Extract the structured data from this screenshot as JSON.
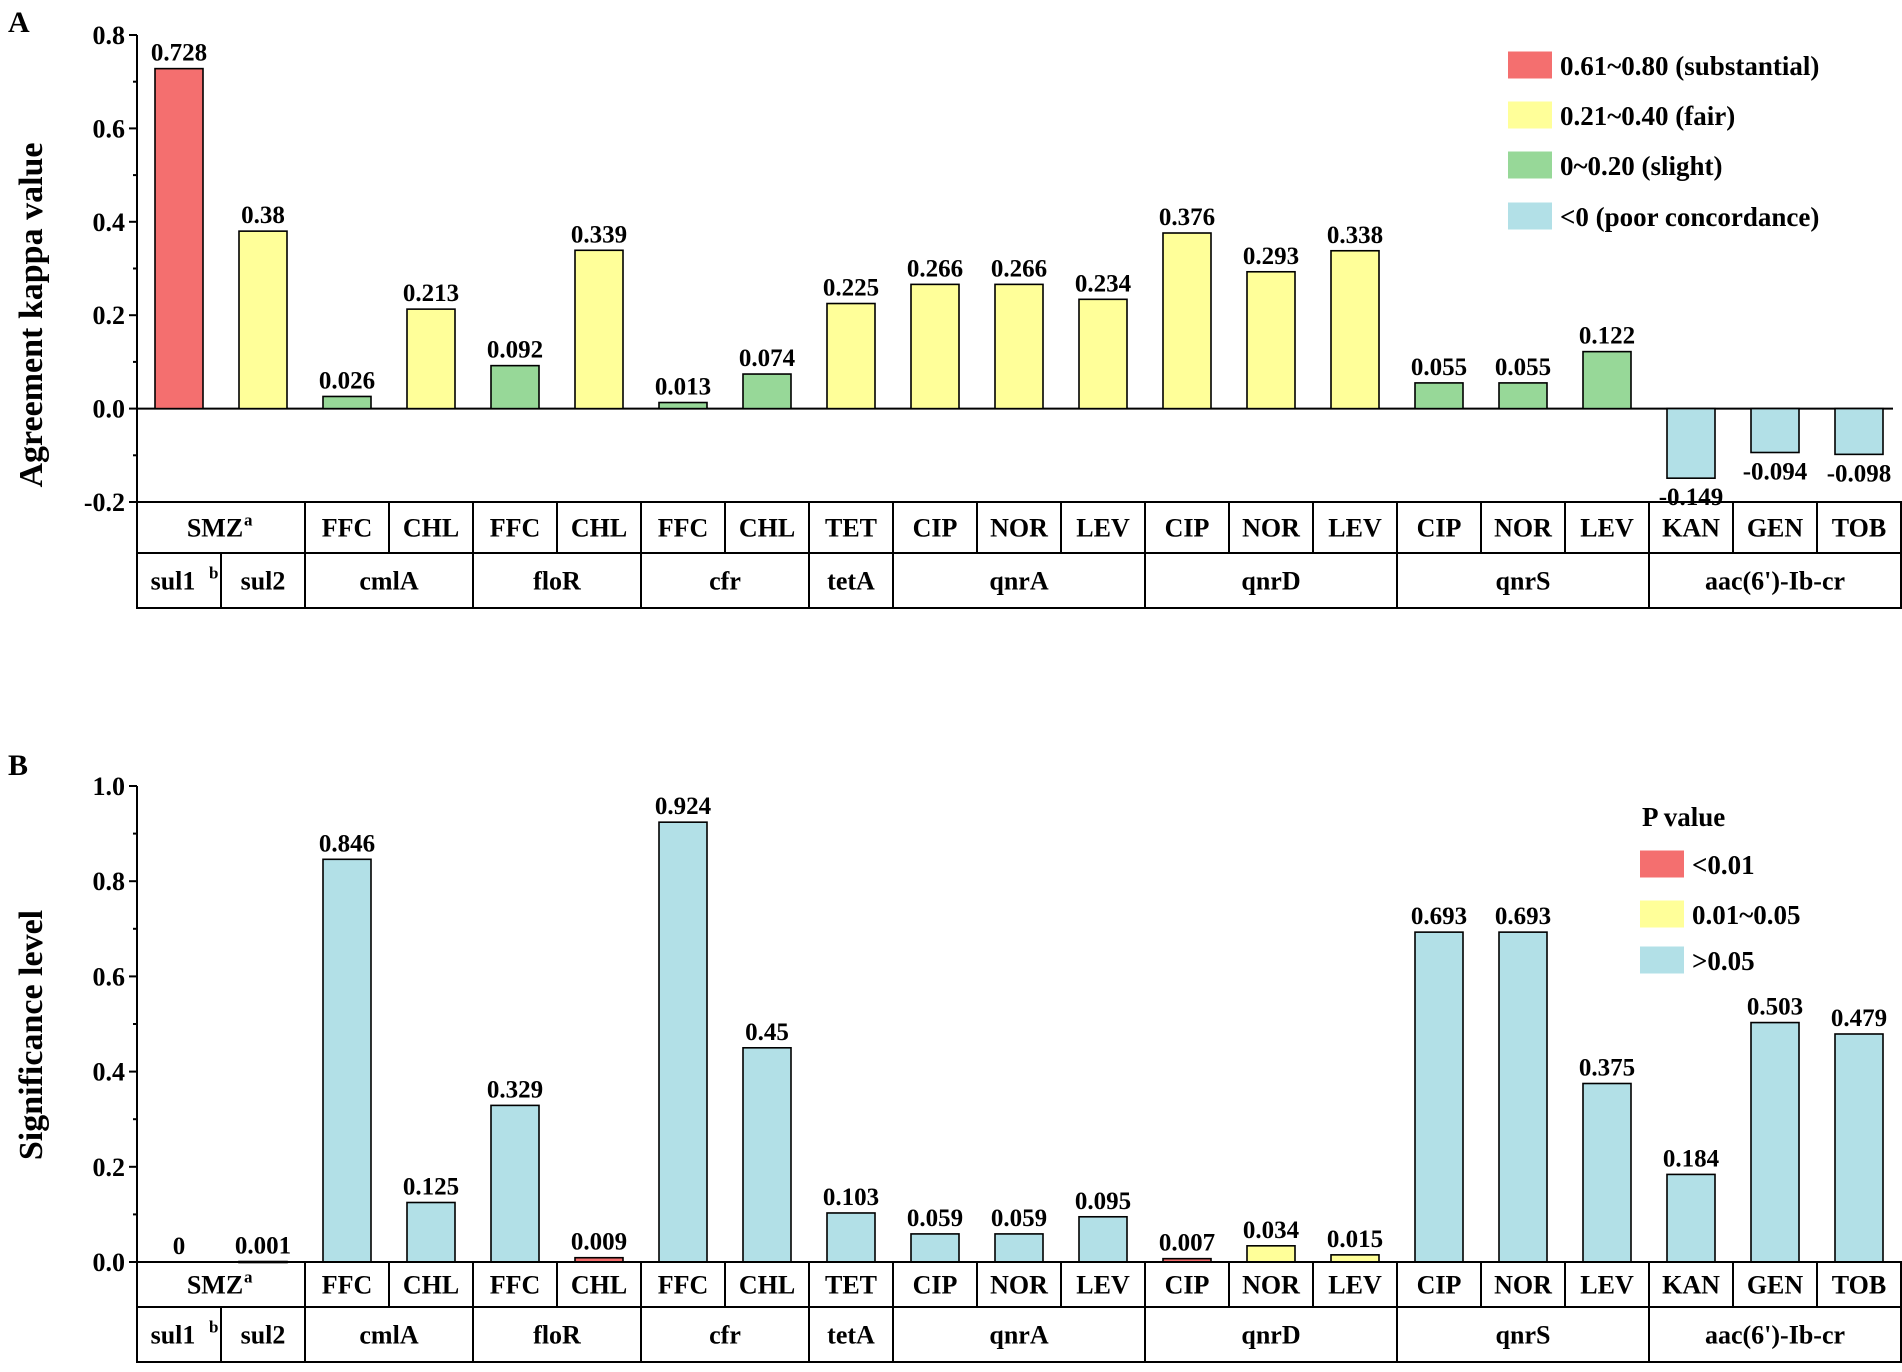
{
  "figure": {
    "colors": {
      "substantial": "#f46f6f",
      "fair": "#ffff99",
      "slight": "#97d898",
      "poor": "#b2e0e7",
      "p_lt_001": "#f46f6f",
      "p_001_005": "#ffff99",
      "p_gt_005": "#b2e0e7",
      "stroke": "#000000"
    }
  },
  "chart_data": [
    {
      "panel": "A",
      "type": "bar",
      "ylabel": "Agreement kappa value",
      "ylim": [
        -0.2,
        0.8
      ],
      "yticks": [
        "-0.2",
        "0.0",
        "0.2",
        "0.4",
        "0.6",
        "0.8"
      ],
      "ytick_values": [
        -0.2,
        0.0,
        0.2,
        0.4,
        0.6,
        0.8
      ],
      "legend": {
        "position": "top-right",
        "title": "",
        "entries": [
          {
            "label": "0.61~0.80 (substantial)",
            "color_key": "substantial"
          },
          {
            "label": "0.21~0.40 (fair)",
            "color_key": "fair"
          },
          {
            "label": "0~0.20 (slight)",
            "color_key": "slight"
          },
          {
            "label": "<0 (poor concordance)",
            "color_key": "poor"
          }
        ]
      },
      "bars": [
        {
          "antibiotic": "SMZ",
          "gene": "sul1",
          "value": 0.728,
          "label": "0.728",
          "color_key": "substantial"
        },
        {
          "antibiotic": "SMZ",
          "gene": "sul2",
          "value": 0.38,
          "label": "0.38",
          "color_key": "fair"
        },
        {
          "antibiotic": "FFC",
          "gene": "cmlA",
          "value": 0.026,
          "label": "0.026",
          "color_key": "slight"
        },
        {
          "antibiotic": "CHL",
          "gene": "cmlA",
          "value": 0.213,
          "label": "0.213",
          "color_key": "fair"
        },
        {
          "antibiotic": "FFC",
          "gene": "floR",
          "value": 0.092,
          "label": "0.092",
          "color_key": "slight"
        },
        {
          "antibiotic": "CHL",
          "gene": "floR",
          "value": 0.339,
          "label": "0.339",
          "color_key": "fair"
        },
        {
          "antibiotic": "FFC",
          "gene": "cfr",
          "value": 0.013,
          "label": "0.013",
          "color_key": "slight"
        },
        {
          "antibiotic": "CHL",
          "gene": "cfr",
          "value": 0.074,
          "label": "0.074",
          "color_key": "slight"
        },
        {
          "antibiotic": "TET",
          "gene": "tetA",
          "value": 0.225,
          "label": "0.225",
          "color_key": "fair"
        },
        {
          "antibiotic": "CIP",
          "gene": "qnrA",
          "value": 0.266,
          "label": "0.266",
          "color_key": "fair"
        },
        {
          "antibiotic": "NOR",
          "gene": "qnrA",
          "value": 0.266,
          "label": "0.266",
          "color_key": "fair"
        },
        {
          "antibiotic": "LEV",
          "gene": "qnrA",
          "value": 0.234,
          "label": "0.234",
          "color_key": "fair"
        },
        {
          "antibiotic": "CIP",
          "gene": "qnrD",
          "value": 0.376,
          "label": "0.376",
          "color_key": "fair"
        },
        {
          "antibiotic": "NOR",
          "gene": "qnrD",
          "value": 0.293,
          "label": "0.293",
          "color_key": "fair"
        },
        {
          "antibiotic": "LEV",
          "gene": "qnrD",
          "value": 0.338,
          "label": "0.338",
          "color_key": "fair"
        },
        {
          "antibiotic": "CIP",
          "gene": "qnrS",
          "value": 0.055,
          "label": "0.055",
          "color_key": "slight"
        },
        {
          "antibiotic": "NOR",
          "gene": "qnrS",
          "value": 0.055,
          "label": "0.055",
          "color_key": "slight"
        },
        {
          "antibiotic": "LEV",
          "gene": "qnrS",
          "value": 0.122,
          "label": "0.122",
          "color_key": "slight"
        },
        {
          "antibiotic": "KAN",
          "gene": "aac(6')-Ib-cr",
          "value": -0.149,
          "label": "-0.149",
          "color_key": "poor"
        },
        {
          "antibiotic": "GEN",
          "gene": "aac(6')-Ib-cr",
          "value": -0.094,
          "label": "-0.094",
          "color_key": "poor"
        },
        {
          "antibiotic": "TOB",
          "gene": "aac(6')-Ib-cr",
          "value": -0.098,
          "label": "-0.098",
          "color_key": "poor"
        }
      ],
      "table": {
        "antibiotic_cells": [
          {
            "text": "SMZ",
            "sup": "a",
            "span": 2
          },
          {
            "text": "FFC",
            "span": 1
          },
          {
            "text": "CHL",
            "span": 1
          },
          {
            "text": "FFC",
            "span": 1
          },
          {
            "text": "CHL",
            "span": 1
          },
          {
            "text": "FFC",
            "span": 1
          },
          {
            "text": "CHL",
            "span": 1
          },
          {
            "text": "TET",
            "span": 1
          },
          {
            "text": "CIP",
            "span": 1
          },
          {
            "text": "NOR",
            "span": 1
          },
          {
            "text": "LEV",
            "span": 1
          },
          {
            "text": "CIP",
            "span": 1
          },
          {
            "text": "NOR",
            "span": 1
          },
          {
            "text": "LEV",
            "span": 1
          },
          {
            "text": "CIP",
            "span": 1
          },
          {
            "text": "NOR",
            "span": 1
          },
          {
            "text": "LEV",
            "span": 1
          },
          {
            "text": "KAN",
            "span": 1
          },
          {
            "text": "GEN",
            "span": 1
          },
          {
            "text": "TOB",
            "span": 1
          }
        ],
        "gene_cells": [
          {
            "text": "sul1",
            "sup": "b",
            "span": 1
          },
          {
            "text": "sul2",
            "span": 1
          },
          {
            "text": "cmlA",
            "span": 2
          },
          {
            "text": "floR",
            "span": 2
          },
          {
            "text": "cfr",
            "span": 2
          },
          {
            "text": "tetA",
            "span": 1
          },
          {
            "text": "qnrA",
            "span": 3
          },
          {
            "text": "qnrD",
            "span": 3
          },
          {
            "text": "qnrS",
            "span": 3
          },
          {
            "text": "aac(6')-Ib-cr",
            "span": 3
          }
        ]
      }
    },
    {
      "panel": "B",
      "type": "bar",
      "ylabel": "Significance level",
      "ylim": [
        0.0,
        1.0
      ],
      "yticks": [
        "0.0",
        "0.2",
        "0.4",
        "0.6",
        "0.8",
        "1.0"
      ],
      "ytick_values": [
        0.0,
        0.2,
        0.4,
        0.6,
        0.8,
        1.0
      ],
      "legend": {
        "position": "top-right",
        "title": "P value",
        "entries": [
          {
            "label": "<0.01",
            "color_key": "p_lt_001"
          },
          {
            "label": "0.01~0.05",
            "color_key": "p_001_005"
          },
          {
            "label": ">0.05",
            "color_key": "p_gt_005"
          }
        ]
      },
      "bars": [
        {
          "antibiotic": "SMZ",
          "gene": "sul1",
          "value": 0,
          "label": "0",
          "color_key": "p_lt_001"
        },
        {
          "antibiotic": "SMZ",
          "gene": "sul2",
          "value": 0.001,
          "label": "0.001",
          "color_key": "p_lt_001"
        },
        {
          "antibiotic": "FFC",
          "gene": "cmlA",
          "value": 0.846,
          "label": "0.846",
          "color_key": "p_gt_005"
        },
        {
          "antibiotic": "CHL",
          "gene": "cmlA",
          "value": 0.125,
          "label": "0.125",
          "color_key": "p_gt_005"
        },
        {
          "antibiotic": "FFC",
          "gene": "floR",
          "value": 0.329,
          "label": "0.329",
          "color_key": "p_gt_005"
        },
        {
          "antibiotic": "CHL",
          "gene": "floR",
          "value": 0.009,
          "label": "0.009",
          "color_key": "p_lt_001"
        },
        {
          "antibiotic": "FFC",
          "gene": "cfr",
          "value": 0.924,
          "label": "0.924",
          "color_key": "p_gt_005"
        },
        {
          "antibiotic": "CHL",
          "gene": "cfr",
          "value": 0.45,
          "label": "0.45",
          "color_key": "p_gt_005"
        },
        {
          "antibiotic": "TET",
          "gene": "tetA",
          "value": 0.103,
          "label": "0.103",
          "color_key": "p_gt_005"
        },
        {
          "antibiotic": "CIP",
          "gene": "qnrA",
          "value": 0.059,
          "label": "0.059",
          "color_key": "p_gt_005"
        },
        {
          "antibiotic": "NOR",
          "gene": "qnrA",
          "value": 0.059,
          "label": "0.059",
          "color_key": "p_gt_005"
        },
        {
          "antibiotic": "LEV",
          "gene": "qnrA",
          "value": 0.095,
          "label": "0.095",
          "color_key": "p_gt_005"
        },
        {
          "antibiotic": "CIP",
          "gene": "qnrD",
          "value": 0.007,
          "label": "0.007",
          "color_key": "p_lt_001"
        },
        {
          "antibiotic": "NOR",
          "gene": "qnrD",
          "value": 0.034,
          "label": "0.034",
          "color_key": "p_001_005"
        },
        {
          "antibiotic": "LEV",
          "gene": "qnrD",
          "value": 0.015,
          "label": "0.015",
          "color_key": "p_001_005"
        },
        {
          "antibiotic": "CIP",
          "gene": "qnrS",
          "value": 0.693,
          "label": "0.693",
          "color_key": "p_gt_005"
        },
        {
          "antibiotic": "NOR",
          "gene": "qnrS",
          "value": 0.693,
          "label": "0.693",
          "color_key": "p_gt_005"
        },
        {
          "antibiotic": "LEV",
          "gene": "qnrS",
          "value": 0.375,
          "label": "0.375",
          "color_key": "p_gt_005"
        },
        {
          "antibiotic": "KAN",
          "gene": "aac(6')-Ib-cr",
          "value": 0.184,
          "label": "0.184",
          "color_key": "p_gt_005"
        },
        {
          "antibiotic": "GEN",
          "gene": "aac(6')-Ib-cr",
          "value": 0.503,
          "label": "0.503",
          "color_key": "p_gt_005"
        },
        {
          "antibiotic": "TOB",
          "gene": "aac(6')-Ib-cr",
          "value": 0.479,
          "label": "0.479",
          "color_key": "p_gt_005"
        }
      ],
      "table": {
        "antibiotic_cells": [
          {
            "text": "SMZ",
            "sup": "a",
            "span": 2
          },
          {
            "text": "FFC",
            "span": 1
          },
          {
            "text": "CHL",
            "span": 1
          },
          {
            "text": "FFC",
            "span": 1
          },
          {
            "text": "CHL",
            "span": 1
          },
          {
            "text": "FFC",
            "span": 1
          },
          {
            "text": "CHL",
            "span": 1
          },
          {
            "text": "TET",
            "span": 1
          },
          {
            "text": "CIP",
            "span": 1
          },
          {
            "text": "NOR",
            "span": 1
          },
          {
            "text": "LEV",
            "span": 1
          },
          {
            "text": "CIP",
            "span": 1
          },
          {
            "text": "NOR",
            "span": 1
          },
          {
            "text": "LEV",
            "span": 1
          },
          {
            "text": "CIP",
            "span": 1
          },
          {
            "text": "NOR",
            "span": 1
          },
          {
            "text": "LEV",
            "span": 1
          },
          {
            "text": "KAN",
            "span": 1
          },
          {
            "text": "GEN",
            "span": 1
          },
          {
            "text": "TOB",
            "span": 1
          }
        ],
        "gene_cells": [
          {
            "text": "sul1",
            "sup": "b",
            "span": 1
          },
          {
            "text": "sul2",
            "span": 1
          },
          {
            "text": "cmlA",
            "span": 2
          },
          {
            "text": "floR",
            "span": 2
          },
          {
            "text": "cfr",
            "span": 2
          },
          {
            "text": "tetA",
            "span": 1
          },
          {
            "text": "qnrA",
            "span": 3
          },
          {
            "text": "qnrD",
            "span": 3
          },
          {
            "text": "qnrS",
            "span": 3
          },
          {
            "text": "aac(6')-Ib-cr",
            "span": 3
          }
        ]
      }
    }
  ]
}
